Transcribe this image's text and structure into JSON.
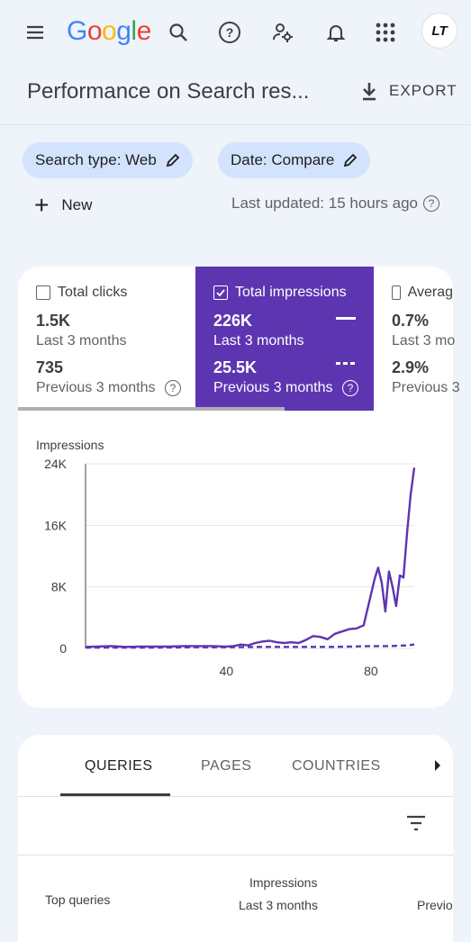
{
  "app": {
    "logo": [
      "G",
      "o",
      "o",
      "g",
      "l",
      "e"
    ],
    "logo_colors": [
      "#4285F4",
      "#EA4335",
      "#FBBC05",
      "#4285F4",
      "#34A853",
      "#EA4335"
    ],
    "avatar_text": "LT"
  },
  "header": {
    "title": "Performance on Search res...",
    "export_label": "EXPORT"
  },
  "filters": {
    "search_type": "Search type: Web",
    "date": "Date: Compare",
    "new_label": "New",
    "last_updated": "Last updated: 15 hours ago"
  },
  "metrics": [
    {
      "label": "Total clicks",
      "value": "1.5K",
      "period": "Last 3 months",
      "prev_value": "735",
      "prev_period": "Previous 3 months",
      "selected": false
    },
    {
      "label": "Total impressions",
      "value": "226K",
      "period": "Last 3 months",
      "prev_value": "25.5K",
      "prev_period": "Previous 3 months",
      "selected": true
    },
    {
      "label": "Averag",
      "value": "0.7%",
      "period": "Last 3 mo",
      "prev_value": "2.9%",
      "prev_period": "Previous 3",
      "selected": false
    }
  ],
  "chart_data": {
    "type": "line",
    "ylabel": "Impressions",
    "yticks": [
      "24K",
      "16K",
      "8K",
      "0"
    ],
    "xticks": [
      "40",
      "80"
    ],
    "ylim": [
      0,
      24000
    ],
    "xlim": [
      1,
      92
    ],
    "color": "#5e35b1",
    "series": [
      {
        "style": "solid",
        "x": [
          1,
          4,
          8,
          12,
          16,
          20,
          24,
          28,
          32,
          36,
          40,
          42,
          44,
          46,
          48,
          50,
          52,
          54,
          56,
          58,
          60,
          62,
          64,
          66,
          68,
          70,
          72,
          74,
          76,
          78,
          80,
          81,
          82,
          83,
          84,
          85,
          86,
          87,
          88,
          89,
          90,
          91,
          92
        ],
        "y": [
          200,
          250,
          300,
          200,
          250,
          250,
          250,
          300,
          300,
          300,
          250,
          300,
          500,
          400,
          700,
          900,
          1000,
          800,
          700,
          800,
          700,
          1100,
          1600,
          1500,
          1200,
          1900,
          2200,
          2500,
          2600,
          3000,
          7000,
          9000,
          10500,
          8500,
          4800,
          10000,
          8000,
          5500,
          9500,
          9200,
          15000,
          20000,
          23500
        ]
      },
      {
        "style": "dashed",
        "x": [
          1,
          10,
          20,
          30,
          40,
          50,
          60,
          70,
          75,
          80,
          85,
          88,
          90,
          92
        ],
        "y": [
          100,
          100,
          100,
          150,
          150,
          200,
          200,
          200,
          250,
          300,
          300,
          350,
          400,
          500
        ]
      }
    ]
  },
  "tabs": {
    "items": [
      "QUERIES",
      "PAGES",
      "COUNTRIES"
    ],
    "active": 0
  },
  "table": {
    "col_query": "Top queries",
    "col_impr_title": "Impressions",
    "col_impr_sub": "Last 3 months",
    "col_prev": "Previo"
  }
}
